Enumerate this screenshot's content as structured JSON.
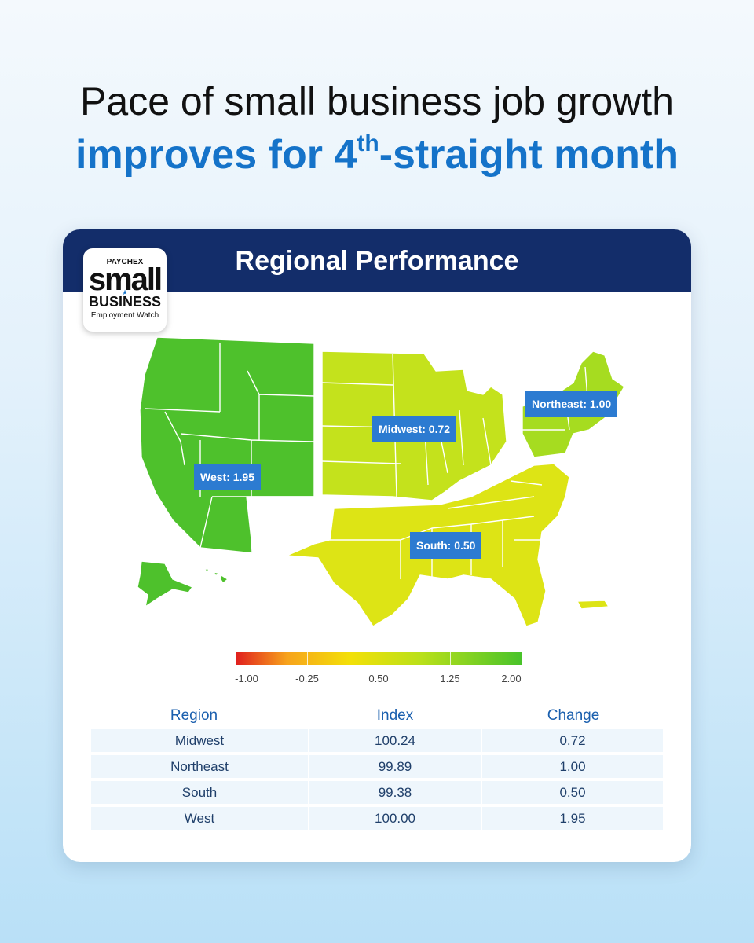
{
  "headline": {
    "line1": "Pace of small business job growth",
    "line2_pre": "improves for 4",
    "line2_sup": "th",
    "line2_post": "-straight month"
  },
  "card": {
    "title": "Regional Performance",
    "logo": {
      "brand": "PAYCHEX",
      "word1": "small",
      "word2": "BUSINESS",
      "tagline": "Employment Watch"
    }
  },
  "map": {
    "regions": [
      {
        "name": "West",
        "label": "West: 1.95",
        "value": 1.95,
        "color": "#4ec12c"
      },
      {
        "name": "Midwest",
        "label": "Midwest: 0.72",
        "value": 0.72,
        "color": "#c4e21c"
      },
      {
        "name": "Northeast",
        "label": "Northeast: 1.00",
        "value": 1.0,
        "color": "#a6dc20"
      },
      {
        "name": "South",
        "label": "South: 0.50",
        "value": 0.5,
        "color": "#dde415"
      }
    ],
    "legend": {
      "ticks": [
        "-1.00",
        "-0.25",
        "0.50",
        "1.25",
        "2.00"
      ],
      "min_color": "#e01e1e",
      "max_color": "#49c32a"
    }
  },
  "table": {
    "headers": [
      "Region",
      "Index",
      "Change"
    ],
    "rows": [
      [
        "Midwest",
        "100.24",
        "0.72"
      ],
      [
        "Northeast",
        "99.89",
        "1.00"
      ],
      [
        "South",
        "99.38",
        "0.50"
      ],
      [
        "West",
        "100.00",
        "1.95"
      ]
    ]
  }
}
